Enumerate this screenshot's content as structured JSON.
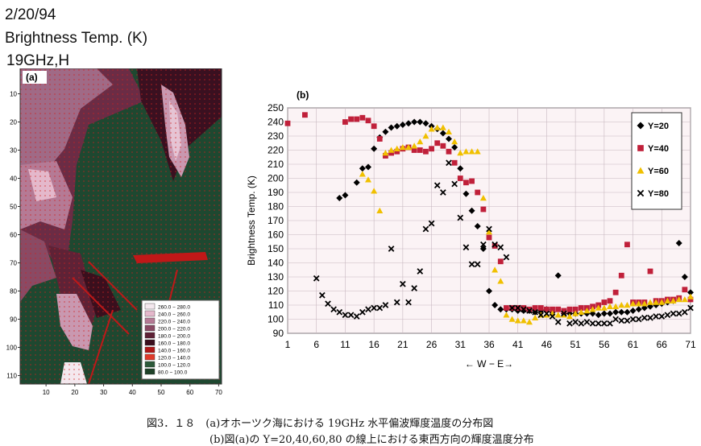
{
  "header": {
    "date": "2/20/94",
    "title": "Brightness Temp. (K)",
    "band": "19GHz,H"
  },
  "caption": {
    "line1": "図3．１８　(a)オホーツク海における 19GHz 水平偏波輝度温度の分布図",
    "line2": "(b)図(a)の Y=20,40,60,80 の線上における東西方向の輝度温度分布"
  },
  "chart_data": [
    {
      "panel_label": "(a)",
      "type": "heatmap",
      "x_ticks": [
        "10",
        "20",
        "30",
        "40",
        "50",
        "60",
        "70"
      ],
      "y_ticks": [
        "10",
        "20",
        "30",
        "40",
        "50",
        "60",
        "70",
        "80",
        "90",
        "100",
        "110"
      ],
      "xlim": [
        1,
        71
      ],
      "ylim": [
        1,
        113
      ],
      "legend": [
        {
          "label": "260.0 − 280.0",
          "color": "#f4e8ee"
        },
        {
          "label": "240.0 − 260.0",
          "color": "#e4b8cb"
        },
        {
          "label": "220.0 − 240.0",
          "color": "#b57a95"
        },
        {
          "label": "200.0 − 220.0",
          "color": "#8a4a64"
        },
        {
          "label": "180.0 − 200.0",
          "color": "#5e2236"
        },
        {
          "label": "160.0 − 180.0",
          "color": "#3a0f1d"
        },
        {
          "label": "140.0 − 160.0",
          "color": "#b01818"
        },
        {
          "label": "120.0 − 140.0",
          "color": "#e03a2a"
        },
        {
          "label": "100.0 − 120.0",
          "color": "#2d5a3a"
        },
        {
          "label": "80.0 − 100.0",
          "color": "#1e4228"
        }
      ]
    },
    {
      "panel_label": "(b)",
      "type": "scatter",
      "ylabel": "Brightness Temp. (K)",
      "xlabel": "← W − E→",
      "xlim": [
        1,
        71
      ],
      "ylim": [
        90,
        250
      ],
      "x_ticks": [
        1,
        6,
        11,
        16,
        21,
        26,
        31,
        36,
        41,
        46,
        51,
        56,
        61,
        66,
        71
      ],
      "y_ticks": [
        90,
        100,
        110,
        120,
        130,
        140,
        150,
        160,
        170,
        180,
        190,
        200,
        210,
        220,
        230,
        240,
        250
      ],
      "grid": true,
      "legend_position": "right",
      "series": [
        {
          "name": "Y=20",
          "marker": "diamond",
          "color": "#000000",
          "x": [
            10,
            11,
            13,
            14,
            15,
            16,
            17,
            18,
            19,
            20,
            21,
            22,
            23,
            24,
            25,
            26,
            27,
            28,
            29,
            30,
            31,
            32,
            33,
            34,
            35,
            36,
            37,
            38,
            39,
            40,
            41,
            42,
            43,
            44,
            45,
            46,
            47,
            48,
            49,
            50,
            51,
            52,
            53,
            54,
            55,
            56,
            57,
            58,
            59,
            60,
            61,
            62,
            63,
            64,
            65,
            66,
            67,
            68,
            69,
            70,
            71
          ],
          "y": [
            186,
            188,
            197,
            207,
            208,
            221,
            229,
            233,
            236,
            237,
            238,
            239,
            240,
            240,
            239,
            237,
            235,
            232,
            228,
            222,
            207,
            189,
            177,
            166,
            150,
            120,
            110,
            107,
            107,
            107,
            106,
            106,
            106,
            105,
            106,
            107,
            105,
            131,
            104,
            104,
            104,
            104,
            104,
            104,
            103,
            104,
            104,
            105,
            105,
            105,
            106,
            107,
            108,
            109,
            110,
            111,
            112,
            113,
            154,
            130,
            119
          ]
        },
        {
          "name": "Y=40",
          "marker": "square",
          "color": "#c0203a",
          "x": [
            1,
            4,
            11,
            12,
            13,
            14,
            15,
            16,
            17,
            18,
            19,
            20,
            21,
            22,
            23,
            24,
            25,
            26,
            27,
            28,
            29,
            30,
            31,
            32,
            33,
            34,
            35,
            36,
            37,
            38,
            39,
            40,
            41,
            42,
            43,
            44,
            45,
            46,
            47,
            48,
            49,
            50,
            51,
            52,
            53,
            54,
            55,
            56,
            57,
            58,
            59,
            60,
            61,
            62,
            63,
            64,
            65,
            66,
            67,
            68,
            69,
            70,
            71
          ],
          "y": [
            239,
            245,
            240,
            242,
            242,
            243,
            241,
            237,
            228,
            216,
            218,
            219,
            221,
            222,
            220,
            220,
            219,
            221,
            225,
            223,
            219,
            211,
            200,
            197,
            198,
            190,
            178,
            158,
            152,
            141,
            108,
            108,
            108,
            108,
            107,
            108,
            108,
            107,
            107,
            107,
            106,
            107,
            107,
            108,
            108,
            109,
            110,
            112,
            113,
            119,
            131,
            153,
            112,
            112,
            112,
            134,
            113,
            113,
            114,
            114,
            115,
            121,
            114
          ]
        },
        {
          "name": "Y=60",
          "marker": "triangle",
          "color": "#f0c000",
          "x": [
            14,
            15,
            16,
            17,
            18,
            19,
            20,
            21,
            22,
            23,
            24,
            25,
            26,
            27,
            28,
            29,
            30,
            31,
            32,
            33,
            34,
            35,
            36,
            37,
            38,
            39,
            40,
            41,
            42,
            43,
            44,
            45,
            46,
            47,
            48,
            49,
            50,
            51,
            52,
            53,
            54,
            55,
            56,
            57,
            58,
            59,
            60,
            61,
            62,
            63,
            64,
            65,
            66,
            67,
            68,
            69,
            70,
            71
          ],
          "y": [
            203,
            199,
            191,
            177,
            218,
            220,
            221,
            222,
            222,
            223,
            226,
            230,
            235,
            236,
            236,
            233,
            226,
            218,
            219,
            219,
            219,
            186,
            162,
            135,
            127,
            103,
            100,
            99,
            99,
            98,
            101,
            103,
            103,
            104,
            103,
            103,
            102,
            104,
            105,
            106,
            107,
            108,
            108,
            109,
            109,
            110,
            110,
            111,
            111,
            111,
            112,
            112,
            112,
            113,
            113,
            114,
            114,
            116
          ]
        },
        {
          "name": "Y=80",
          "marker": "x",
          "color": "#000000",
          "x": [
            6,
            7,
            8,
            9,
            10,
            11,
            12,
            13,
            14,
            15,
            16,
            17,
            18,
            19,
            20,
            21,
            22,
            23,
            24,
            25,
            26,
            27,
            28,
            29,
            30,
            31,
            32,
            33,
            34,
            35,
            36,
            37,
            38,
            39,
            40,
            41,
            42,
            43,
            44,
            45,
            46,
            47,
            48,
            49,
            50,
            51,
            52,
            53,
            54,
            55,
            56,
            57,
            58,
            59,
            60,
            61,
            62,
            63,
            64,
            65,
            66,
            67,
            68,
            69,
            70,
            71
          ],
          "y": [
            129,
            117,
            111,
            107,
            105,
            103,
            103,
            102,
            105,
            107,
            108,
            108,
            110,
            150,
            112,
            125,
            112,
            122,
            134,
            164,
            168,
            195,
            190,
            211,
            196,
            172,
            151,
            139,
            139,
            153,
            164,
            153,
            151,
            144,
            108,
            108,
            107,
            106,
            105,
            103,
            104,
            102,
            98,
            104,
            97,
            98,
            97,
            98,
            97,
            97,
            97,
            97,
            100,
            99,
            99,
            100,
            100,
            101,
            101,
            102,
            102,
            103,
            104,
            104,
            105,
            108
          ]
        }
      ]
    }
  ]
}
